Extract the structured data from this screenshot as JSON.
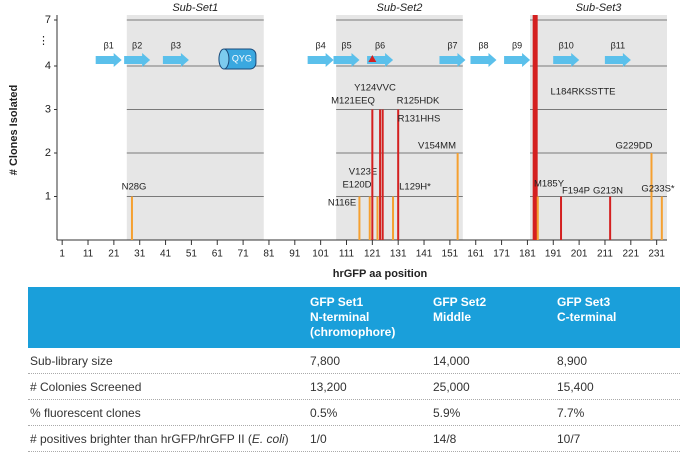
{
  "chart_data": {
    "type": "bar",
    "xlabel": "hrGFP aa position",
    "ylabel": "# Clones Isolated",
    "xlim": [
      -1,
      235
    ],
    "xticks": [
      1,
      11,
      21,
      31,
      41,
      51,
      61,
      71,
      81,
      91,
      101,
      111,
      121,
      131,
      141,
      151,
      161,
      171,
      181,
      191,
      201,
      211,
      221,
      231
    ],
    "ylim": [
      0,
      7
    ],
    "yticks": [
      1,
      2,
      3,
      4,
      7
    ],
    "y_break_label": "⋮",
    "regions": [
      {
        "label": "Sub-Set1",
        "range": [
          26,
          79
        ]
      },
      {
        "label": "Sub-Set2",
        "range": [
          107,
          156
        ]
      },
      {
        "label": "Sub-Set3",
        "range": [
          182,
          235
        ]
      }
    ],
    "x": [
      28,
      116,
      120,
      123,
      121,
      124,
      125,
      129,
      131,
      154,
      184,
      185,
      194,
      213,
      229,
      233
    ],
    "values": [
      1,
      1,
      1,
      1,
      3,
      3,
      3,
      1,
      3,
      2,
      7,
      1,
      1,
      1,
      2,
      1
    ],
    "labels": [
      "N28G",
      "N116E",
      "E120D",
      "V123E",
      "M121EEQ",
      "Y124VVC",
      "R125HDK",
      "L129H*",
      "R131HHS",
      "V154MM",
      "L184RKSSTTE",
      "M185Y",
      "F194P",
      "G213N",
      "G229DD",
      "G233S*"
    ],
    "colors": [
      "#f5a030",
      "#f5a030",
      "#f5a030",
      "#f5a030",
      "#d42020",
      "#d42020",
      "#d42020",
      "#f5a030",
      "#d42020",
      "#f5a030",
      "#d42020",
      "#f5a030",
      "#d42020",
      "#d42020",
      "#f5a030",
      "#f5a030"
    ],
    "strands": [
      {
        "label": "β1",
        "position": 19
      },
      {
        "label": "β2",
        "position": 30
      },
      {
        "label": "β3",
        "position": 45
      },
      {
        "label": "β4",
        "position": 101
      },
      {
        "label": "β5",
        "position": 111
      },
      {
        "label": "β6",
        "position": 124
      },
      {
        "label": "β7",
        "position": 152
      },
      {
        "label": "β8",
        "position": 164
      },
      {
        "label": "β9",
        "position": 177
      },
      {
        "label": "β10",
        "position": 196
      },
      {
        "label": "β11",
        "position": 216
      }
    ],
    "helix": {
      "label": "QYG",
      "position": 69
    }
  },
  "table": {
    "header": [
      [
        "GFP Set1",
        "N-terminal",
        "(chromophore)"
      ],
      [
        "GFP Set2",
        "Middle"
      ],
      [
        "GFP Set3",
        "C-terminal"
      ]
    ],
    "rows": [
      [
        "Sub-library size",
        "7,800",
        "14,000",
        "8,900"
      ],
      [
        "# Colonies Screened",
        "13,200",
        "25,000",
        "15,400"
      ],
      [
        "% fluorescent clones",
        "0.5%",
        "5.9%",
        "7.7%"
      ],
      [
        "# positives brighter than hrGFP/hrGFP II (",
        "1/0",
        "14/8",
        "10/7"
      ]
    ],
    "row_label_italic": "E. coli",
    "row_label_end": ")"
  }
}
